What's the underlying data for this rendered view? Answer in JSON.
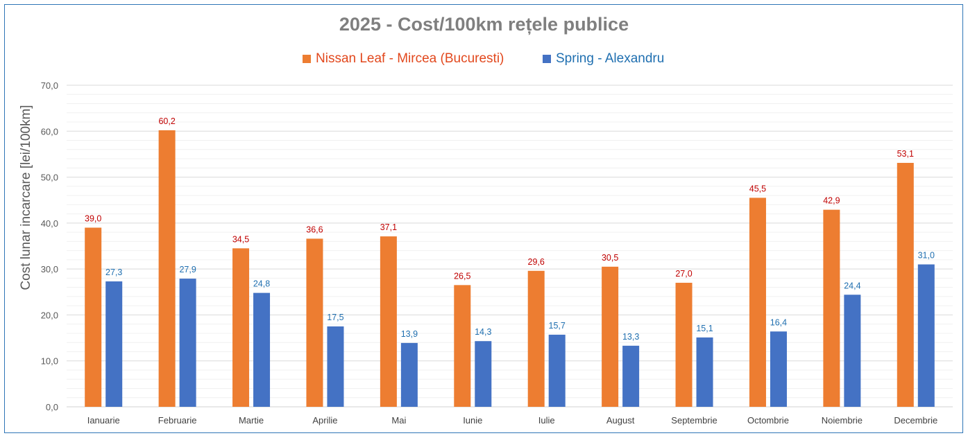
{
  "chart_data": {
    "type": "bar",
    "title": "2025 - Cost/100km rețele publice",
    "xlabel": "",
    "ylabel": "Cost lunar incarcare [lei/100km]",
    "ylim": [
      0,
      70
    ],
    "yticks": [
      "0,0",
      "10,0",
      "20,0",
      "30,0",
      "40,0",
      "50,0",
      "60,0",
      "70,0"
    ],
    "ytick_values": [
      0,
      10,
      20,
      30,
      40,
      50,
      60,
      70
    ],
    "minor_gridlines_step": 2,
    "grid": true,
    "legend_position": "top",
    "categories": [
      "Ianuarie",
      "Februarie",
      "Martie",
      "Aprilie",
      "Mai",
      "Iunie",
      "Iulie",
      "August",
      "Septembrie",
      "Octombrie",
      "Noiembrie",
      "Decembrie"
    ],
    "series": [
      {
        "name": "Nissan Leaf - Mircea (Bucuresti)",
        "color": "#ed7d31",
        "label_color": "#c00000",
        "legend_text_color": "#e2481d",
        "values": [
          39.0,
          60.2,
          34.5,
          36.6,
          37.1,
          26.5,
          29.6,
          30.5,
          27.0,
          45.5,
          42.9,
          53.1
        ],
        "labels": [
          "39,0",
          "60,2",
          "34,5",
          "36,6",
          "37,1",
          "26,5",
          "29,6",
          "30,5",
          "27,0",
          "45,5",
          "42,9",
          "53,1"
        ]
      },
      {
        "name": "Spring - Alexandru",
        "color": "#4472c4",
        "label_color": "#1f6fb0",
        "legend_text_color": "#1f6fb0",
        "values": [
          27.3,
          27.9,
          24.8,
          17.5,
          13.9,
          14.3,
          15.7,
          13.3,
          15.1,
          16.4,
          24.4,
          31.0
        ],
        "labels": [
          "27,3",
          "27,9",
          "24,8",
          "17,5",
          "13,9",
          "14,3",
          "15,7",
          "13,3",
          "15,1",
          "16,4",
          "24,4",
          "31,0"
        ]
      }
    ]
  }
}
